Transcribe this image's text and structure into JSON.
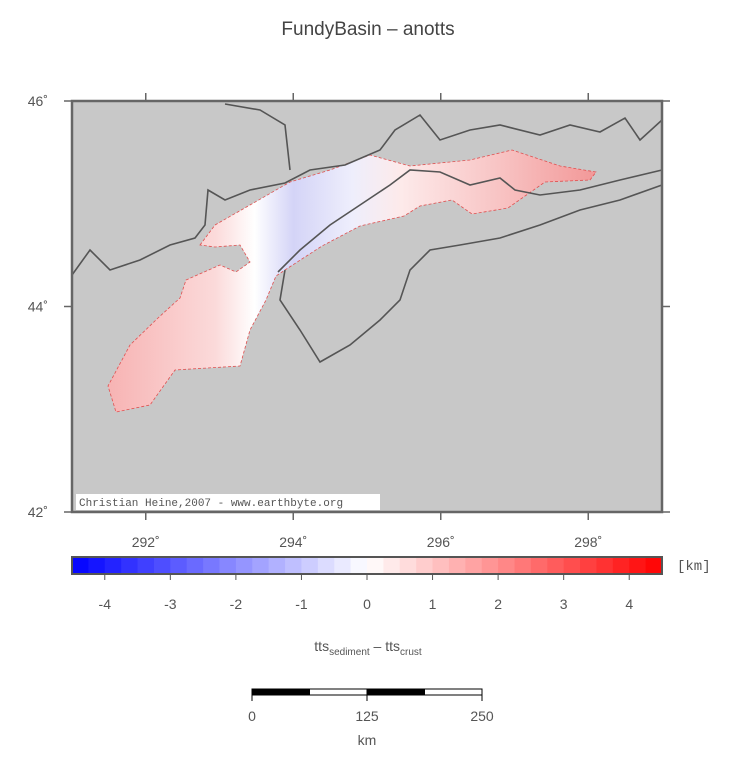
{
  "map": {
    "title": "FundyBasin – anotts",
    "lonlim": [
      291,
      299
    ],
    "latlim": [
      42,
      46
    ],
    "lonticks": [
      {
        "value": 292,
        "label": "292˚"
      },
      {
        "value": 294,
        "label": "294˚"
      },
      {
        "value": 296,
        "label": "296˚"
      },
      {
        "value": 298,
        "label": "298˚"
      }
    ],
    "latticks": [
      {
        "value": 42,
        "label": "42˚"
      },
      {
        "value": 44,
        "label": "44˚"
      },
      {
        "value": 46,
        "label": "46˚"
      }
    ],
    "credit": "Christian Heine,2007 - www.earthbyte.org",
    "colorbar": {
      "lim": [
        -4.5,
        4.5
      ],
      "ticks": [
        -4,
        -3,
        -2,
        -1,
        0,
        1,
        2,
        3,
        4
      ],
      "colormap": [
        "#0000ff",
        "#ffffff",
        "#ff0000"
      ],
      "unit": "[km]",
      "label": {
        "base1": "tts",
        "sub1": "sediment",
        "sep": " – tts",
        "sub2": "crust"
      }
    },
    "scalebar": {
      "ticks": [
        0,
        125,
        250
      ],
      "unit": "km"
    }
  }
}
